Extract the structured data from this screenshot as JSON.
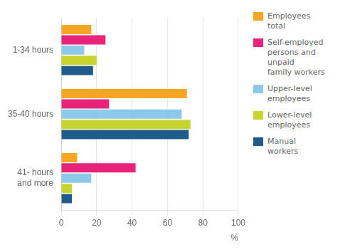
{
  "chart_data": {
    "type": "bar",
    "orientation": "horizontal",
    "categories": [
      "1-34 hours",
      "35-40 hours",
      "41- hours\nand more"
    ],
    "series": [
      {
        "name": "Employees\ntotal",
        "color": "#F5A623",
        "values": [
          17,
          71,
          9
        ]
      },
      {
        "name": "Self-employed\npersons and\nunpaid\nfamily workers",
        "color": "#E8237A",
        "values": [
          25,
          27,
          42
        ]
      },
      {
        "name": "Upper-level\nemployees",
        "color": "#8CC8E8",
        "values": [
          13,
          68,
          17
        ]
      },
      {
        "name": "Lower-level\nemployees",
        "color": "#C8D430",
        "values": [
          20,
          73,
          6
        ]
      },
      {
        "name": "Manual\nworkers",
        "color": "#1F5C8B",
        "values": [
          18,
          72,
          6
        ]
      }
    ],
    "xlabel": "%",
    "xlim": [
      0,
      100
    ],
    "xticks": [
      0,
      20,
      40,
      60,
      80,
      100
    ],
    "grid": "x",
    "legend": "right"
  }
}
